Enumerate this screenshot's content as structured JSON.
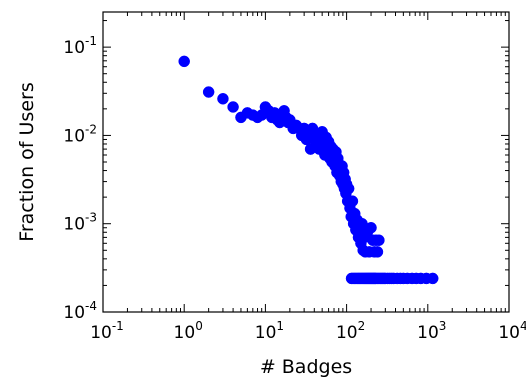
{
  "chart_data": {
    "type": "scatter",
    "title": "",
    "xlabel": "# Badges",
    "ylabel": "Fraction of Users",
    "xscale": "log",
    "yscale": "log",
    "xlim": [
      0.1,
      10000
    ],
    "ylim": [
      0.0001,
      0.25
    ],
    "grid": false,
    "legend": "none",
    "marker_color": "#0000ff",
    "x_ticks": [
      {
        "value": 0.1,
        "base": "10",
        "exp": "-1"
      },
      {
        "value": 1,
        "base": "10",
        "exp": "0"
      },
      {
        "value": 10,
        "base": "10",
        "exp": "1"
      },
      {
        "value": 100,
        "base": "10",
        "exp": "2"
      },
      {
        "value": 1000,
        "base": "10",
        "exp": "3"
      },
      {
        "value": 10000,
        "base": "10",
        "exp": "4"
      }
    ],
    "y_ticks": [
      {
        "value": 0.0001,
        "base": "10",
        "exp": "-4"
      },
      {
        "value": 0.001,
        "base": "10",
        "exp": "-3"
      },
      {
        "value": 0.01,
        "base": "10",
        "exp": "-2"
      },
      {
        "value": 0.1,
        "base": "10",
        "exp": "-1"
      }
    ],
    "series": [
      {
        "x": [
          1,
          2,
          3,
          4,
          5,
          6,
          7,
          8,
          9,
          10,
          11,
          12,
          13,
          14,
          15,
          16,
          17,
          18,
          19,
          20,
          22,
          24,
          26,
          28,
          30,
          32,
          34,
          36,
          38,
          40,
          42,
          44,
          46,
          48,
          50,
          52,
          54,
          56,
          58,
          60,
          62,
          64,
          66,
          68,
          70,
          72,
          74,
          76,
          78,
          80,
          82,
          84,
          86,
          88,
          90,
          92,
          94,
          96,
          98,
          100,
          103,
          106,
          110,
          114,
          118,
          122,
          126,
          130,
          135,
          140,
          145,
          150,
          155,
          160,
          165,
          170,
          180,
          190,
          200,
          210,
          220,
          230,
          240,
          250,
          115,
          120,
          125,
          130,
          135,
          140,
          145,
          150,
          155,
          160,
          165,
          170,
          175,
          180,
          185,
          190,
          195,
          200,
          205,
          210,
          215,
          220,
          225,
          230,
          240,
          250,
          260,
          270,
          280,
          290,
          300,
          320,
          340,
          360,
          380,
          420,
          460,
          500,
          560,
          640,
          720,
          820,
          960,
          1150
        ],
        "y": [
          0.069,
          0.031,
          0.026,
          0.021,
          0.016,
          0.018,
          0.017,
          0.016,
          0.017,
          0.021,
          0.019,
          0.016,
          0.018,
          0.015,
          0.014,
          0.017,
          0.019,
          0.016,
          0.014,
          0.015,
          0.012,
          0.013,
          0.012,
          0.01,
          0.012,
          0.009,
          0.011,
          0.007,
          0.012,
          0.009,
          0.01,
          0.008,
          0.007,
          0.009,
          0.011,
          0.0075,
          0.006,
          0.0095,
          0.0065,
          0.0085,
          0.0055,
          0.0075,
          0.005,
          0.007,
          0.006,
          0.0045,
          0.0065,
          0.0038,
          0.0055,
          0.0048,
          0.0035,
          0.0042,
          0.003,
          0.0045,
          0.0028,
          0.0038,
          0.0025,
          0.0032,
          0.0022,
          0.0028,
          0.0018,
          0.0025,
          0.0015,
          0.0012,
          0.0018,
          0.001,
          0.0013,
          0.00085,
          0.0011,
          0.0007,
          0.0009,
          0.0006,
          0.001,
          0.0005,
          0.0007,
          0.00048,
          0.0008,
          0.00048,
          0.0009,
          0.00065,
          0.00048,
          0.00065,
          0.00048,
          0.00065,
          0.00024,
          0.00024,
          0.00024,
          0.00024,
          0.00024,
          0.00024,
          0.00024,
          0.00024,
          0.00024,
          0.00024,
          0.00024,
          0.00024,
          0.00024,
          0.00024,
          0.00024,
          0.00024,
          0.00024,
          0.00024,
          0.00024,
          0.00024,
          0.00024,
          0.00024,
          0.00024,
          0.00024,
          0.00024,
          0.00024,
          0.00024,
          0.00024,
          0.00024,
          0.00024,
          0.00024,
          0.00024,
          0.00024,
          0.00024,
          0.00024,
          0.00024,
          0.00024,
          0.00024,
          0.00024,
          0.00024,
          0.00024,
          0.00024,
          0.00024,
          0.00024
        ]
      }
    ]
  }
}
